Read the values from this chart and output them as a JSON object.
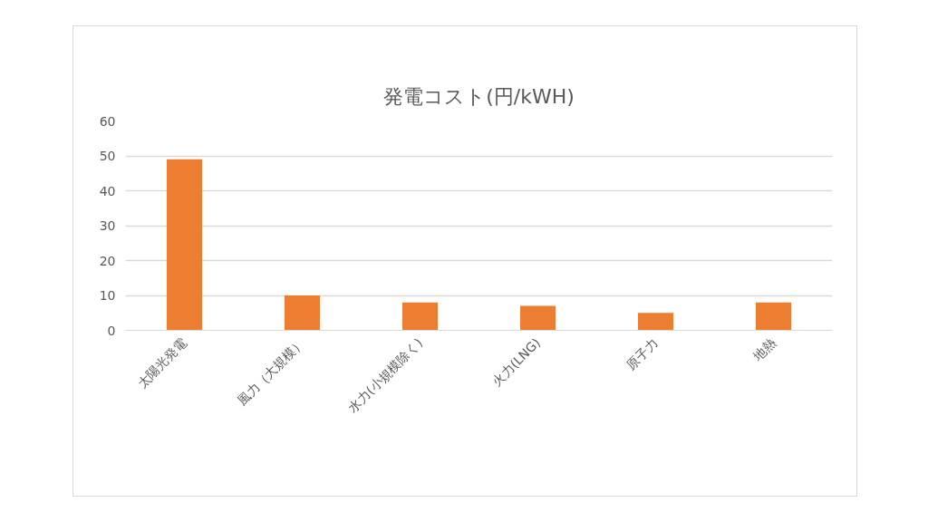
{
  "chart_data": {
    "type": "bar",
    "title": "発電コスト(円/kWH)",
    "categories": [
      "太陽光発電",
      "風力（大規模）",
      "水力(小規模除く)",
      "火力(LNG)",
      "原子力",
      "地熱"
    ],
    "values": [
      49,
      10,
      8,
      7,
      5,
      8
    ],
    "color": "#ed7d31",
    "ylim": [
      0,
      60
    ],
    "yticks": [
      0,
      10,
      20,
      30,
      40,
      50,
      60
    ],
    "grid": "y"
  }
}
